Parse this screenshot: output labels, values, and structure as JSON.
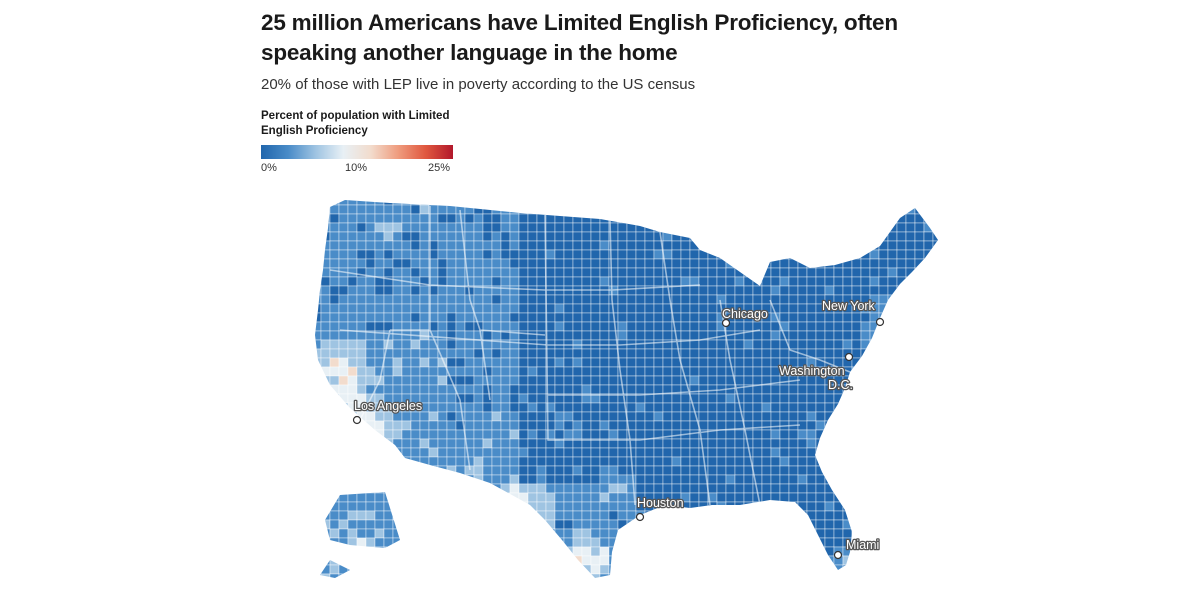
{
  "header": {
    "title": "25 million Americans have Limited English Proficiency, often speaking another language in the home",
    "subtitle": "20% of those with LEP live in poverty according to the US census"
  },
  "legend": {
    "title": "Percent of population with Limited English Proficiency",
    "ticks": [
      {
        "label": "0%",
        "value": 0
      },
      {
        "label": "10%",
        "value": 10
      },
      {
        "label": "25%",
        "value": 25
      }
    ],
    "range": [
      0,
      25
    ],
    "colors": [
      "#2166ac",
      "#4a8cc8",
      "#9fc4e2",
      "#e8f0f5",
      "#f2dccd",
      "#ef9c7e",
      "#e0583f",
      "#b2182b"
    ]
  },
  "map": {
    "subject": "US counties shaded by percent with Limited English Proficiency",
    "cities": [
      {
        "name": "Chicago",
        "id": "chicago"
      },
      {
        "name": "New York",
        "id": "new-york"
      },
      {
        "name": "Washington",
        "id": "washington-1"
      },
      {
        "name": "D.C.",
        "id": "washington-2"
      },
      {
        "name": "Los Angeles",
        "id": "los-angeles"
      },
      {
        "name": "Houston",
        "id": "houston"
      },
      {
        "name": "Miami",
        "id": "miami"
      }
    ]
  }
}
